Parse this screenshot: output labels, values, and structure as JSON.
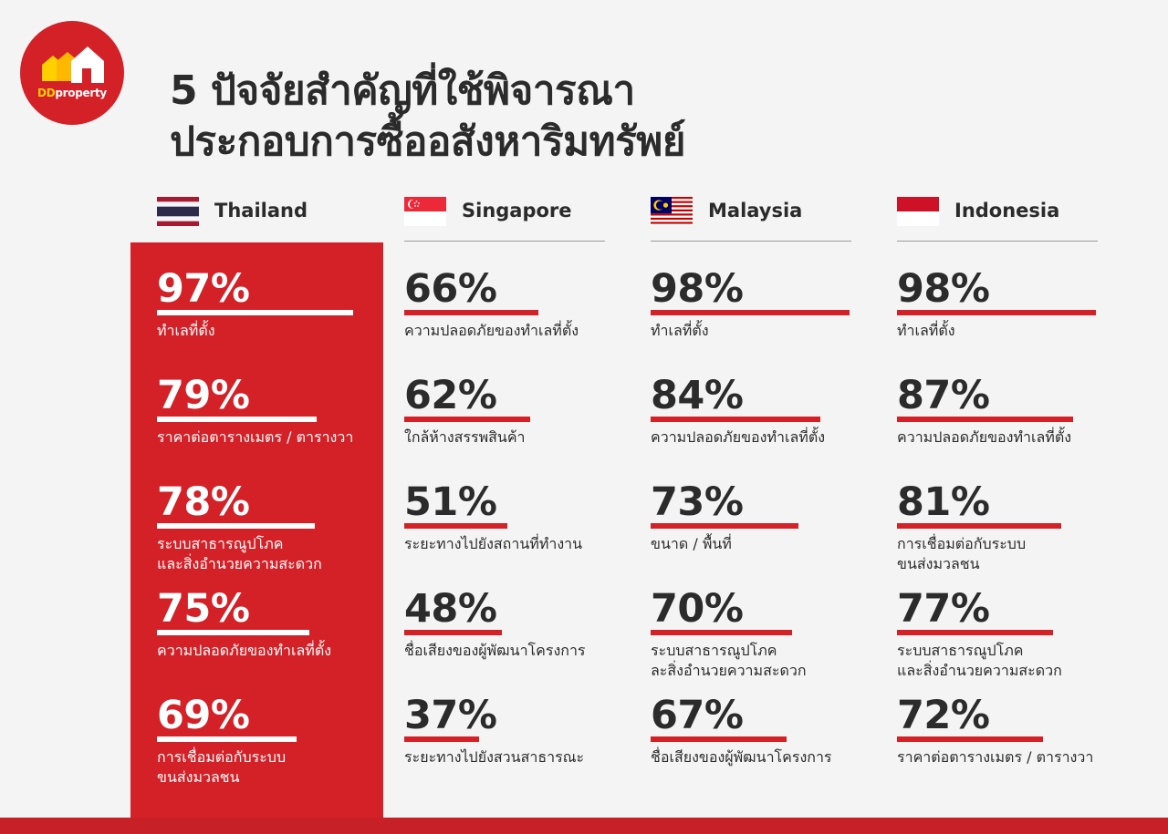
{
  "logo": {
    "brand_dd": "DD",
    "brand_rest": "property"
  },
  "title": {
    "line1": "5 ปัจจัยสำคัญที่ใช้พิจารณา",
    "line2": "ประกอบการซื้ออสังหาริมทรัพย์"
  },
  "colors": {
    "accent": "#d42027",
    "text": "#2b2b2b",
    "background": "#f4f4f4"
  },
  "chart_data": {
    "type": "bar",
    "xlim": [
      0,
      100
    ],
    "series": [
      {
        "name": "Thailand",
        "flag": "flag-thailand-icon",
        "items": [
          {
            "pct_label": "97%",
            "value": 97,
            "label": [
              "ทำเลที่ตั้ง"
            ]
          },
          {
            "pct_label": "79%",
            "value": 79,
            "label": [
              "ราคาต่อตารางเมตร / ตารางวา"
            ]
          },
          {
            "pct_label": "78%",
            "value": 78,
            "label": [
              "ระบบสาธารณูปโภค",
              "และสิ่งอำนวยความสะดวก"
            ]
          },
          {
            "pct_label": "75%",
            "value": 75,
            "label": [
              "ความปลอดภัยของทำเลที่ตั้ง"
            ]
          },
          {
            "pct_label": "69%",
            "value": 69,
            "label": [
              "การเชื่อมต่อกับระบบ",
              "ขนส่งมวลชน"
            ]
          }
        ]
      },
      {
        "name": "Singapore",
        "flag": "flag-singapore-icon",
        "items": [
          {
            "pct_label": "66%",
            "value": 66,
            "label": [
              "ความปลอดภัยของทำเลที่ตั้ง"
            ]
          },
          {
            "pct_label": "62%",
            "value": 62,
            "label": [
              "ใกล้ห้างสรรพสินค้า"
            ]
          },
          {
            "pct_label": "51%",
            "value": 51,
            "label": [
              "ระยะทางไปยังสถานที่ทำงาน"
            ]
          },
          {
            "pct_label": "48%",
            "value": 48,
            "label": [
              "ชื่อเสียงของผู้พัฒนาโครงการ"
            ]
          },
          {
            "pct_label": "37%",
            "value": 37,
            "label": [
              "ระยะทางไปยังสวนสาธารณะ"
            ]
          }
        ]
      },
      {
        "name": "Malaysia",
        "flag": "flag-malaysia-icon",
        "items": [
          {
            "pct_label": "98%",
            "value": 98,
            "label": [
              "ทำเลที่ตั้ง"
            ]
          },
          {
            "pct_label": "84%",
            "value": 84,
            "label": [
              "ความปลอดภัยของทำเลที่ตั้ง"
            ]
          },
          {
            "pct_label": "73%",
            "value": 73,
            "label": [
              "ขนาด / พื้นที่"
            ]
          },
          {
            "pct_label": "70%",
            "value": 70,
            "label": [
              "ระบบสาธารณูปโภค",
              "ละสิ่งอำนวยความสะดวก"
            ]
          },
          {
            "pct_label": "67%",
            "value": 67,
            "label": [
              "ชื่อเสียงของผู้พัฒนาโครงการ"
            ]
          }
        ]
      },
      {
        "name": "Indonesia",
        "flag": "flag-indonesia-icon",
        "items": [
          {
            "pct_label": "98%",
            "value": 98,
            "label": [
              "ทำเลที่ตั้ง"
            ]
          },
          {
            "pct_label": "87%",
            "value": 87,
            "label": [
              "ความปลอดภัยของทำเลที่ตั้ง"
            ]
          },
          {
            "pct_label": "81%",
            "value": 81,
            "label": [
              "การเชื่อมต่อกับระบบ",
              "ขนส่งมวลชน"
            ]
          },
          {
            "pct_label": "77%",
            "value": 77,
            "label": [
              "ระบบสาธารณูปโภค",
              "และสิ่งอำนวยความสะดวก"
            ]
          },
          {
            "pct_label": "72%",
            "value": 72,
            "label": [
              "ราคาต่อตารางเมตร / ตารางวา"
            ]
          }
        ]
      }
    ]
  }
}
